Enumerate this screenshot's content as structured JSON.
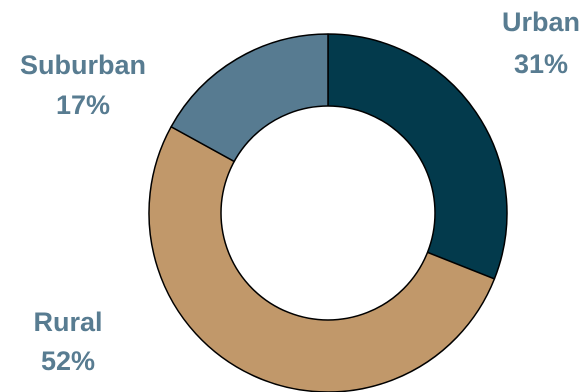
{
  "chart_data": {
    "type": "pie",
    "title": "",
    "donut": true,
    "series": [
      {
        "values": [
          31,
          52,
          17
        ],
        "categories": [
          "Urban",
          "Rural",
          "Suburban"
        ],
        "labels": [
          "31%",
          "52%",
          "17%"
        ]
      }
    ]
  },
  "colors": {
    "Urban": "#033a4c",
    "Rural": "#c1986a",
    "Suburban": "#577b91",
    "label_text": "#587c91",
    "stroke": "#000000"
  }
}
